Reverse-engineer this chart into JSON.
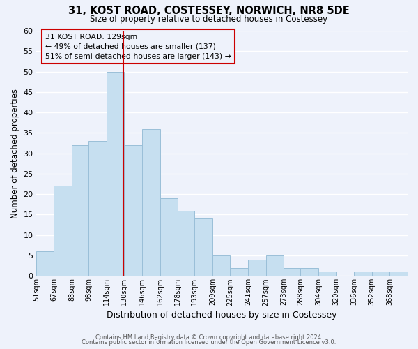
{
  "title": "31, KOST ROAD, COSTESSEY, NORWICH, NR8 5DE",
  "subtitle": "Size of property relative to detached houses in Costessey",
  "xlabel": "Distribution of detached houses by size in Costessey",
  "ylabel": "Number of detached properties",
  "bar_color": "#c6dff0",
  "bar_edge_color": "#9abfd8",
  "bin_labels": [
    "51sqm",
    "67sqm",
    "83sqm",
    "98sqm",
    "114sqm",
    "130sqm",
    "146sqm",
    "162sqm",
    "178sqm",
    "193sqm",
    "209sqm",
    "225sqm",
    "241sqm",
    "257sqm",
    "273sqm",
    "288sqm",
    "304sqm",
    "320sqm",
    "336sqm",
    "352sqm",
    "368sqm"
  ],
  "bin_edges": [
    51,
    67,
    83,
    98,
    114,
    130,
    146,
    162,
    178,
    193,
    209,
    225,
    241,
    257,
    273,
    288,
    304,
    320,
    336,
    352,
    368,
    384
  ],
  "counts": [
    6,
    22,
    32,
    33,
    50,
    32,
    36,
    19,
    16,
    14,
    5,
    2,
    4,
    5,
    2,
    2,
    1,
    0,
    1,
    1,
    1
  ],
  "vline_x": 129,
  "vline_color": "#cc0000",
  "ylim": [
    0,
    60
  ],
  "yticks": [
    0,
    5,
    10,
    15,
    20,
    25,
    30,
    35,
    40,
    45,
    50,
    55,
    60
  ],
  "annotation_line1": "31 KOST ROAD: 129sqm",
  "annotation_line2": "← 49% of detached houses are smaller (137)",
  "annotation_line3": "51% of semi-detached houses are larger (143) →",
  "footer_line1": "Contains HM Land Registry data © Crown copyright and database right 2024.",
  "footer_line2": "Contains public sector information licensed under the Open Government Licence v3.0.",
  "background_color": "#eef2fb",
  "grid_color": "#ffffff"
}
